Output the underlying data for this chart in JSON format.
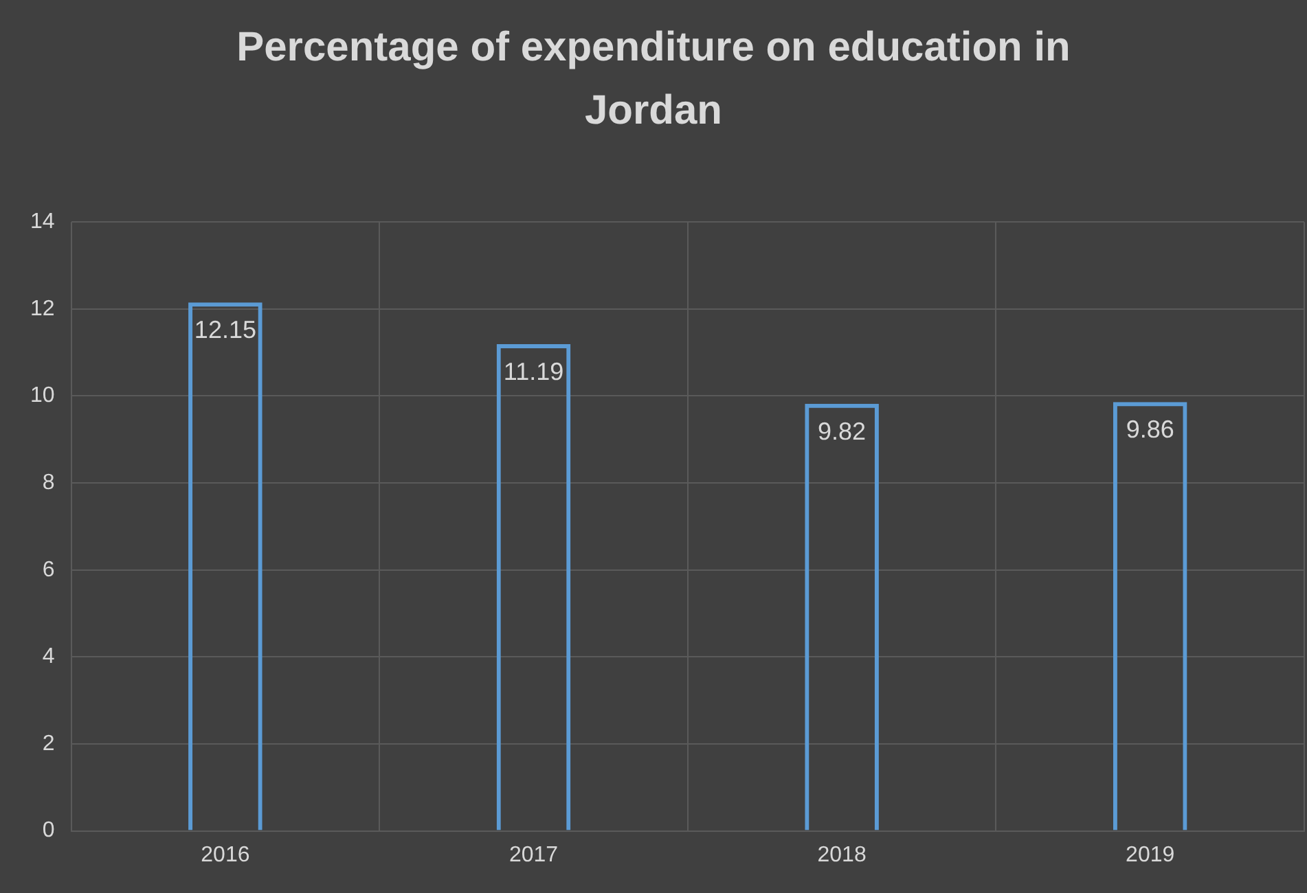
{
  "chart_data": {
    "type": "bar",
    "title": "Percentage of expenditure on education in Jordan",
    "categories": [
      "2016",
      "2017",
      "2018",
      "2019"
    ],
    "series": [
      {
        "color": "#5b9bd5",
        "values": [
          12.15,
          11.19,
          9.82,
          9.86
        ]
      }
    ],
    "ylim": [
      0,
      14
    ],
    "yticks": [
      0,
      2,
      4,
      6,
      8,
      10,
      12,
      14
    ],
    "grid": true,
    "data_labels": true,
    "legend": false
  }
}
